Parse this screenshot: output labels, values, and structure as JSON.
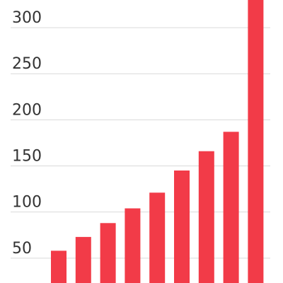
{
  "chart_data": {
    "type": "bar",
    "title": "",
    "xlabel": "",
    "ylabel": "",
    "grid": true,
    "legend": "none",
    "color": "#f23b48",
    "ylim": [
      23,
      330
    ],
    "yticks": [
      50,
      100,
      150,
      200,
      250,
      300
    ],
    "yticklabels": [
      "50",
      "100",
      "150",
      "200",
      "250",
      "300"
    ],
    "categories": [
      "",
      "",
      "",
      "",
      "",
      "",
      "",
      "",
      ""
    ],
    "values": [
      58,
      73,
      88,
      104,
      121,
      145,
      166,
      187,
      330
    ]
  }
}
